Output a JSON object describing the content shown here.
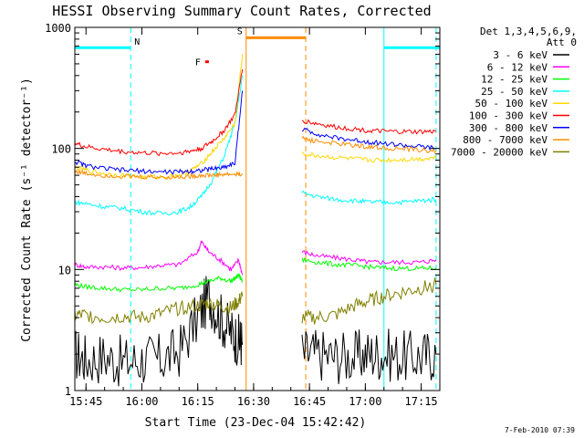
{
  "chart_data": {
    "type": "line",
    "title": "HESSI Observing Summary Count Rates, Corrected",
    "xlabel": "Start Time (23-Dec-04 15:42:42)",
    "ylabel": "Corrected Count Rate (s⁻¹ detector⁻¹)",
    "xlim_minutes_after_1542": [
      -3,
      95
    ],
    "ylim": [
      1,
      1000
    ],
    "yscale": "log",
    "x_ticks": [
      {
        "label": "15:45",
        "t": 0
      },
      {
        "label": "16:00",
        "t": 15
      },
      {
        "label": "16:15",
        "t": 30
      },
      {
        "label": "16:30",
        "t": 45
      },
      {
        "label": "16:45",
        "t": 60
      },
      {
        "label": "17:00",
        "t": 75
      },
      {
        "label": "17:15",
        "t": 90
      }
    ],
    "y_ticks": [
      {
        "label": "1",
        "v": 1
      },
      {
        "label": "10",
        "v": 10
      },
      {
        "label": "100",
        "v": 100
      },
      {
        "label": "1000",
        "v": 1000
      }
    ],
    "legend": {
      "placement": "right",
      "header": [
        "Det 1,3,4,5,6,9,",
        "Att 0"
      ]
    },
    "series": [
      {
        "name": "3 - 6 keV",
        "color": "#000000",
        "points": [
          [
            -3,
            2.0
          ],
          [
            0,
            1.8
          ],
          [
            5,
            1.9
          ],
          [
            10,
            1.7
          ],
          [
            15,
            1.8
          ],
          [
            20,
            1.8
          ],
          [
            25,
            2.1
          ],
          [
            30,
            4
          ],
          [
            33,
            6
          ],
          [
            36,
            4
          ],
          [
            39,
            3
          ],
          [
            41,
            2.6
          ],
          [
            42,
            2.5
          ]
        ],
        "points2": [
          [
            58,
            2.0
          ],
          [
            62,
            2.0
          ],
          [
            67,
            1.9
          ],
          [
            72,
            1.9
          ],
          [
            76,
            2.0
          ],
          [
            80,
            2.0
          ],
          [
            85,
            1.9
          ],
          [
            90,
            1.9
          ],
          [
            94,
            2.0
          ]
        ]
      },
      {
        "name": "6 - 12 keV",
        "color": "#ff00ff",
        "points": [
          [
            -3,
            11
          ],
          [
            0,
            10.5
          ],
          [
            5,
            10.5
          ],
          [
            10,
            10.3
          ],
          [
            15,
            10.4
          ],
          [
            20,
            10.8
          ],
          [
            25,
            11
          ],
          [
            30,
            14
          ],
          [
            31,
            17
          ],
          [
            33,
            14
          ],
          [
            36,
            12
          ],
          [
            39,
            10
          ],
          [
            41,
            12
          ],
          [
            42,
            9
          ]
        ],
        "points2": [
          [
            58,
            14
          ],
          [
            62,
            13
          ],
          [
            67,
            12.5
          ],
          [
            72,
            12
          ],
          [
            76,
            11.5
          ],
          [
            80,
            11.5
          ],
          [
            85,
            11.5
          ],
          [
            90,
            11.5
          ],
          [
            94,
            12
          ]
        ]
      },
      {
        "name": "12 - 25 keV",
        "color": "#00ff00",
        "points": [
          [
            -3,
            7.5
          ],
          [
            0,
            7.2
          ],
          [
            5,
            7
          ],
          [
            10,
            6.8
          ],
          [
            15,
            6.8
          ],
          [
            20,
            7
          ],
          [
            25,
            7
          ],
          [
            30,
            7.5
          ],
          [
            33,
            8
          ],
          [
            36,
            8.5
          ],
          [
            39,
            8
          ],
          [
            41,
            9
          ],
          [
            42,
            8
          ]
        ],
        "points2": [
          [
            58,
            12
          ],
          [
            62,
            11.5
          ],
          [
            67,
            11
          ],
          [
            72,
            10.8
          ],
          [
            76,
            10.5
          ],
          [
            80,
            10.3
          ],
          [
            85,
            10.2
          ],
          [
            90,
            10.2
          ],
          [
            94,
            10.3
          ]
        ]
      },
      {
        "name": "25 - 50 keV",
        "color": "#00ffff",
        "points": [
          [
            -3,
            36
          ],
          [
            0,
            35
          ],
          [
            5,
            33
          ],
          [
            10,
            32
          ],
          [
            15,
            30
          ],
          [
            20,
            29
          ],
          [
            25,
            30
          ],
          [
            28,
            33
          ],
          [
            31,
            40
          ],
          [
            34,
            55
          ],
          [
            37,
            85
          ],
          [
            40,
            160
          ],
          [
            42,
            400
          ]
        ],
        "points2": [
          [
            58,
            43
          ],
          [
            62,
            40
          ],
          [
            67,
            38
          ],
          [
            72,
            37
          ],
          [
            76,
            36
          ],
          [
            80,
            36
          ],
          [
            85,
            36
          ],
          [
            90,
            37
          ],
          [
            94,
            38
          ]
        ]
      },
      {
        "name": "50 - 100 keV",
        "color": "#ffd700",
        "points": [
          [
            -3,
            70
          ],
          [
            0,
            66
          ],
          [
            5,
            62
          ],
          [
            10,
            60
          ],
          [
            15,
            58
          ],
          [
            20,
            58
          ],
          [
            25,
            60
          ],
          [
            28,
            65
          ],
          [
            31,
            75
          ],
          [
            34,
            95
          ],
          [
            37,
            120
          ],
          [
            40,
            160
          ],
          [
            42,
            600
          ]
        ],
        "points2": [
          [
            58,
            90
          ],
          [
            62,
            87
          ],
          [
            67,
            84
          ],
          [
            72,
            82
          ],
          [
            76,
            80
          ],
          [
            80,
            80
          ],
          [
            85,
            81
          ],
          [
            90,
            82
          ],
          [
            94,
            84
          ]
        ]
      },
      {
        "name": "100 - 300 keV",
        "color": "#ff0000",
        "points": [
          [
            -3,
            110
          ],
          [
            0,
            103
          ],
          [
            5,
            98
          ],
          [
            10,
            94
          ],
          [
            15,
            92
          ],
          [
            20,
            91
          ],
          [
            25,
            92
          ],
          [
            28,
            95
          ],
          [
            31,
            100
          ],
          [
            34,
            115
          ],
          [
            37,
            140
          ],
          [
            40,
            190
          ],
          [
            42,
            450
          ]
        ],
        "points2": [
          [
            58,
            170
          ],
          [
            62,
            160
          ],
          [
            67,
            150
          ],
          [
            72,
            145
          ],
          [
            76,
            140
          ],
          [
            80,
            138
          ],
          [
            85,
            137
          ],
          [
            90,
            137
          ],
          [
            94,
            138
          ]
        ]
      },
      {
        "name": "300 - 800 keV",
        "color": "#0000ff",
        "points": [
          [
            -3,
            78
          ],
          [
            0,
            72
          ],
          [
            5,
            68
          ],
          [
            10,
            66
          ],
          [
            15,
            65
          ],
          [
            20,
            64
          ],
          [
            25,
            64
          ],
          [
            28,
            65
          ],
          [
            31,
            66
          ],
          [
            34,
            68
          ],
          [
            37,
            70
          ],
          [
            40,
            76
          ],
          [
            42,
            300
          ]
        ],
        "points2": [
          [
            58,
            145
          ],
          [
            62,
            132
          ],
          [
            67,
            122
          ],
          [
            72,
            117
          ],
          [
            76,
            113
          ],
          [
            80,
            110
          ],
          [
            85,
            106
          ],
          [
            90,
            103
          ],
          [
            94,
            100
          ]
        ]
      },
      {
        "name": "800 - 7000 keV",
        "color": "#ff8c00",
        "points": [
          [
            -3,
            65
          ],
          [
            0,
            62
          ],
          [
            5,
            60
          ],
          [
            10,
            59
          ],
          [
            15,
            58
          ],
          [
            20,
            58
          ],
          [
            25,
            58
          ],
          [
            28,
            59
          ],
          [
            31,
            60
          ],
          [
            34,
            60
          ],
          [
            37,
            61
          ],
          [
            40,
            61
          ],
          [
            42,
            62
          ]
        ],
        "points2": [
          [
            58,
            120
          ],
          [
            62,
            115
          ],
          [
            67,
            110
          ],
          [
            72,
            106
          ],
          [
            76,
            103
          ],
          [
            80,
            101
          ],
          [
            85,
            99
          ],
          [
            90,
            97
          ],
          [
            94,
            95
          ]
        ]
      },
      {
        "name": "7000 - 20000 keV",
        "color": "#808000",
        "points": [
          [
            -3,
            4.2
          ],
          [
            0,
            4.2
          ],
          [
            5,
            4.0
          ],
          [
            10,
            4.1
          ],
          [
            15,
            4.0
          ],
          [
            20,
            4.3
          ],
          [
            25,
            4.8
          ],
          [
            30,
            5.0
          ],
          [
            33,
            5.3
          ],
          [
            36,
            5.0
          ],
          [
            39,
            4.8
          ],
          [
            41,
            5.5
          ],
          [
            42,
            6
          ]
        ],
        "points2": [
          [
            58,
            4.0
          ],
          [
            62,
            4.0
          ],
          [
            67,
            4.2
          ],
          [
            72,
            5.0
          ],
          [
            76,
            5.5
          ],
          [
            80,
            6.0
          ],
          [
            85,
            6.5
          ],
          [
            90,
            7.0
          ],
          [
            94,
            7.5
          ]
        ]
      }
    ],
    "flag_bars": [
      {
        "label": "N",
        "color": "#00ffff",
        "y": 680,
        "segments": [
          [
            -3,
            12
          ],
          [
            80,
            95
          ]
        ]
      },
      {
        "label": "S",
        "color": "#ff8c00",
        "y": 820,
        "segments": [
          [
            43,
            59
          ]
        ]
      },
      {
        "label": "F",
        "color": "#ff0000",
        "y": 520,
        "segments": [
          [
            32,
            33
          ]
        ]
      }
    ],
    "vertical_lines": [
      {
        "t": 12,
        "color": "#00ffff",
        "style": "dashed"
      },
      {
        "t": 80,
        "color": "#00ffff",
        "style": "solid"
      },
      {
        "t": 94,
        "color": "#00ffff",
        "style": "dashed"
      },
      {
        "t": 43,
        "color": "#ff8c00",
        "style": "solid"
      },
      {
        "t": 59,
        "color": "#ff8c00",
        "style": "dashed"
      }
    ],
    "footer": "7-Feb-2010 07:39"
  }
}
